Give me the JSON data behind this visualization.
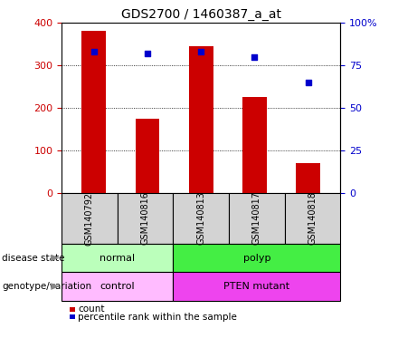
{
  "title": "GDS2700 / 1460387_a_at",
  "samples": [
    "GSM140792",
    "GSM140816",
    "GSM140813",
    "GSM140817",
    "GSM140818"
  ],
  "counts": [
    380,
    175,
    345,
    225,
    70
  ],
  "percentiles": [
    83,
    82,
    83,
    80,
    65
  ],
  "ylim_left": [
    0,
    400
  ],
  "ylim_right": [
    0,
    100
  ],
  "yticks_left": [
    0,
    100,
    200,
    300,
    400
  ],
  "yticks_right": [
    0,
    25,
    50,
    75,
    100
  ],
  "ytick_labels_right": [
    "0",
    "25",
    "50",
    "75",
    "100%"
  ],
  "bar_color": "#cc0000",
  "dot_color": "#0000cc",
  "disease_state_groups": [
    {
      "label": "normal",
      "start": 0,
      "end": 2,
      "color": "#bbffbb"
    },
    {
      "label": "polyp",
      "start": 2,
      "end": 5,
      "color": "#44ee44"
    }
  ],
  "genotype_groups": [
    {
      "label": "control",
      "start": 0,
      "end": 2,
      "color": "#ffbbff"
    },
    {
      "label": "PTEN mutant",
      "start": 2,
      "end": 5,
      "color": "#ee44ee"
    }
  ],
  "row_labels": [
    "disease state",
    "genotype/variation"
  ],
  "legend_count_color": "#cc0000",
  "legend_dot_color": "#0000cc",
  "tick_label_color_left": "#cc0000",
  "tick_label_color_right": "#0000cc",
  "xtick_bg_color": "#d3d3d3"
}
